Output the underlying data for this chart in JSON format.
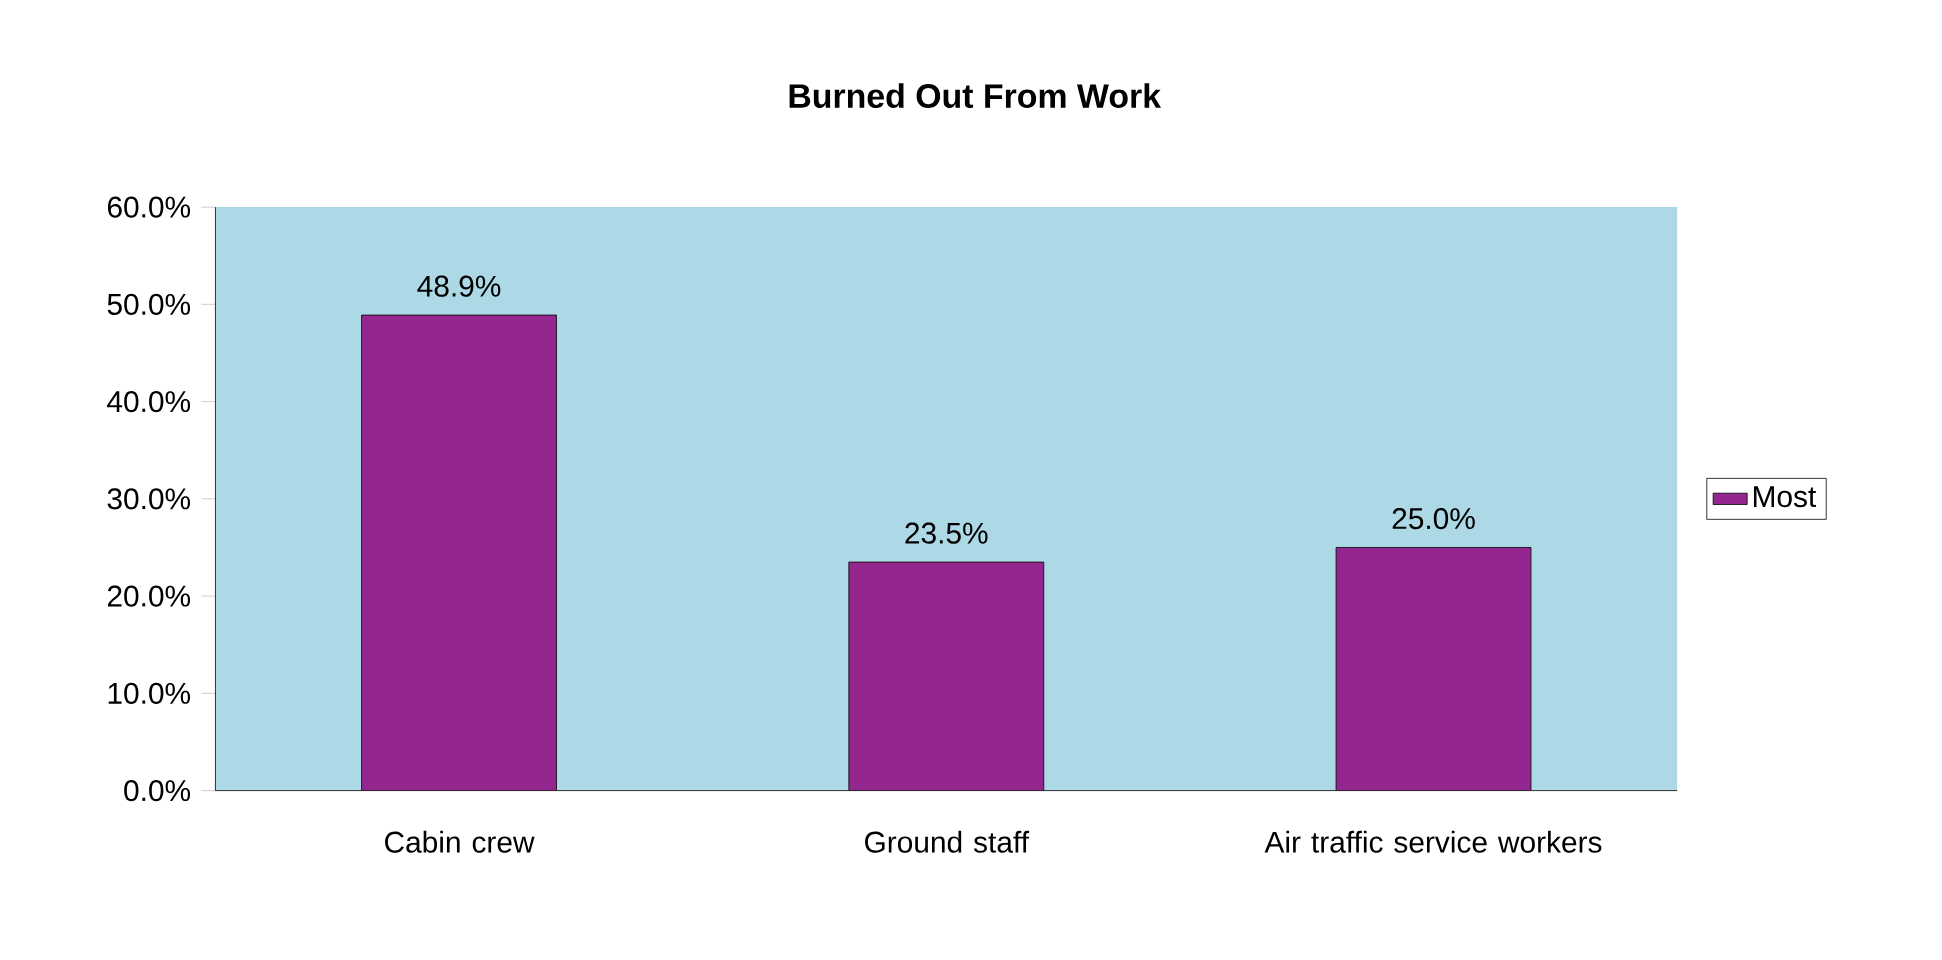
{
  "chart_data": {
    "type": "bar",
    "title": "Burned Out From Work",
    "categories": [
      "Cabin crew",
      "Ground staff",
      "Air traffic service workers"
    ],
    "series": [
      {
        "name": "Most",
        "color": "#93278f",
        "values": [
          48.9,
          23.5,
          25.0
        ],
        "value_labels": [
          "48.9%",
          "23.5%",
          "25.0%"
        ]
      }
    ],
    "ylim": [
      0,
      60
    ],
    "yticks": [
      {
        "value": 0,
        "label": "0.0%"
      },
      {
        "value": 10,
        "label": "10.0%"
      },
      {
        "value": 20,
        "label": "20.0%"
      },
      {
        "value": 30,
        "label": "30.0%"
      },
      {
        "value": 40,
        "label": "40.0%"
      },
      {
        "value": 50,
        "label": "50.0%"
      },
      {
        "value": 60,
        "label": "60.0%"
      }
    ],
    "grid": false,
    "legend": "right"
  }
}
